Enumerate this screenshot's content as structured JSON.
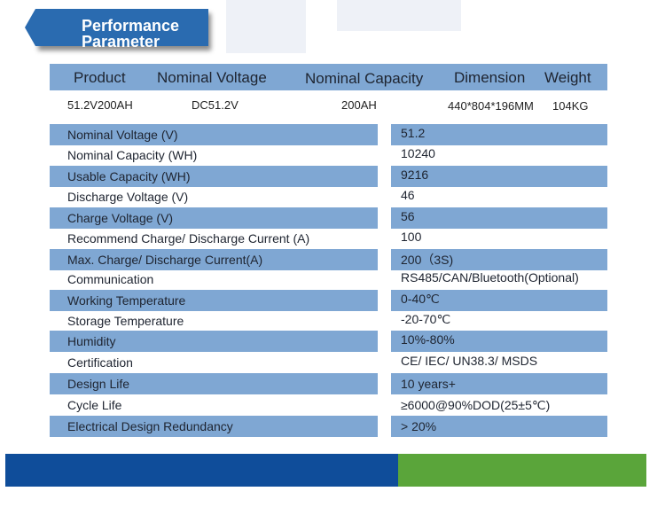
{
  "title": {
    "line1": "Performance",
    "line2": "Parameter"
  },
  "header": {
    "product": "Product",
    "nominal_voltage": "Nominal Voltage",
    "nominal_capacity": "Nominal Capacity",
    "dimension": "Dimension",
    "weight": "Weight"
  },
  "product_row": {
    "product": "51.2V200AH",
    "voltage": "DC51.2V",
    "capacity": "200AH",
    "dimension": "440*804*196MM",
    "weight": "104KG"
  },
  "specs": [
    {
      "label": "Nominal Voltage (V)",
      "value": "51.2"
    },
    {
      "label": "Nominal Capacity (WH)",
      "value": "10240"
    },
    {
      "label": "Usable Capacity (WH)",
      "value": "9216"
    },
    {
      "label": "Discharge Voltage (V)",
      "value": "46"
    },
    {
      "label": "Charge Voltage (V)",
      "value": "56"
    },
    {
      "label": "Recommend Charge/ Discharge Current (A)",
      "value": "100"
    },
    {
      "label": "Max. Charge/ Discharge Current(A)",
      "value": "200（3S)"
    },
    {
      "label": "Communication",
      "value": "RS485/CAN/Bluetooth(Optional)"
    },
    {
      "label": "Working Temperature",
      "value": "0-40℃"
    },
    {
      "label": "Storage Temperature",
      "value": "-20-70℃"
    },
    {
      "label": "Humidity",
      "value": "10%-80%"
    },
    {
      "label": "Certification",
      "value": "CE/ IEC/ UN38.3/ MSDS"
    },
    {
      "label": "Design Life",
      "value": "10 years+"
    },
    {
      "label": "Cycle Life",
      "value": "≥6000@90%DOD(25±5℃)"
    },
    {
      "label": "Electrical Design Redundancy",
      "value": "> 20%"
    }
  ],
  "colors": {
    "title_bg": "#2a6bb0",
    "row_stripe": "#7fa7d3",
    "footer_blue": "#0f4d9a",
    "footer_green": "#5aa53a"
  }
}
